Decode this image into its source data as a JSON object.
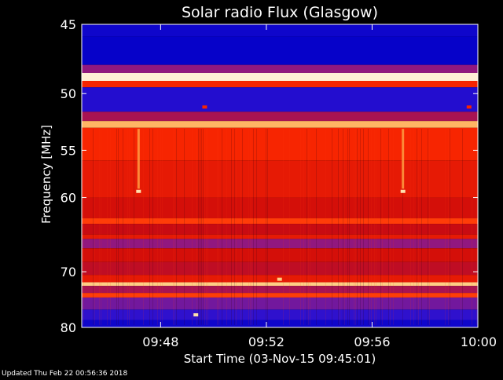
{
  "chart_data": {
    "type": "heatmap",
    "title": "Solar radio Flux (Glasgow)",
    "xlabel": "Start Time (03-Nov-15 09:45:01)",
    "ylabel": "Frequency [MHz]",
    "x_range": [
      "09:45:01",
      "10:00"
    ],
    "x_ticks": [
      "09:48",
      "09:52",
      "09:56",
      "10:00"
    ],
    "y_range": [
      45,
      80
    ],
    "y_ticks": [
      45,
      50,
      55,
      60,
      70,
      80
    ],
    "y_scale": "reciprocal",
    "grid": false,
    "colormap": [
      "#0000c8",
      "#2a10d0",
      "#8a1a8c",
      "#cc0a0a",
      "#ff2a00",
      "#ff8a2a",
      "#ffd28a",
      "#ffffff"
    ],
    "bands": [
      {
        "from": 45.0,
        "to": 45.8,
        "level": 0.05
      },
      {
        "from": 45.8,
        "to": 47.8,
        "level": 0.02
      },
      {
        "from": 47.8,
        "to": 48.4,
        "level": 0.3
      },
      {
        "from": 48.4,
        "to": 49.0,
        "level": 0.95
      },
      {
        "from": 49.0,
        "to": 49.5,
        "level": 0.55
      },
      {
        "from": 49.5,
        "to": 51.5,
        "level": 0.12
      },
      {
        "from": 51.5,
        "to": 52.3,
        "level": 0.35
      },
      {
        "from": 52.3,
        "to": 52.9,
        "level": 0.8
      },
      {
        "from": 52.9,
        "to": 56.0,
        "level": 0.55
      },
      {
        "from": 56.0,
        "to": 60.0,
        "level": 0.5
      },
      {
        "from": 60.0,
        "to": 62.5,
        "level": 0.45
      },
      {
        "from": 62.5,
        "to": 63.2,
        "level": 0.6
      },
      {
        "from": 63.2,
        "to": 64.6,
        "level": 0.42
      },
      {
        "from": 64.6,
        "to": 65.2,
        "level": 0.5
      },
      {
        "from": 65.2,
        "to": 66.5,
        "level": 0.3
      },
      {
        "from": 66.5,
        "to": 68.5,
        "level": 0.45
      },
      {
        "from": 68.5,
        "to": 70.5,
        "level": 0.4
      },
      {
        "from": 70.5,
        "to": 71.7,
        "level": 0.5
      },
      {
        "from": 71.7,
        "to": 72.3,
        "level": 0.85
      },
      {
        "from": 72.3,
        "to": 73.5,
        "level": 0.35
      },
      {
        "from": 73.5,
        "to": 74.3,
        "level": 0.6
      },
      {
        "from": 74.3,
        "to": 76.5,
        "level": 0.25
      },
      {
        "from": 76.5,
        "to": 78.5,
        "level": 0.15
      },
      {
        "from": 78.5,
        "to": 80.0,
        "level": 0.05
      }
    ],
    "vertical_features": [
      {
        "time": "09:47:10",
        "from": 53.0,
        "to": 59.0,
        "level": 0.75
      },
      {
        "time": "09:57:10",
        "from": 53.0,
        "to": 59.0,
        "level": 0.75
      }
    ],
    "spots": [
      {
        "time": "09:47:10",
        "freq": 59.3,
        "level": 0.9
      },
      {
        "time": "09:57:10",
        "freq": 59.3,
        "level": 0.9
      },
      {
        "time": "09:49:40",
        "freq": 51.1,
        "level": 0.55
      },
      {
        "time": "09:59:40",
        "freq": 51.1,
        "level": 0.55
      },
      {
        "time": "09:49:20",
        "freq": 77.5,
        "level": 0.9
      },
      {
        "time": "09:52:30",
        "freq": 71.2,
        "level": 0.85
      }
    ]
  },
  "footer": {
    "updated_text": "Updated Thu Feb 22 00:56:36 2018"
  }
}
